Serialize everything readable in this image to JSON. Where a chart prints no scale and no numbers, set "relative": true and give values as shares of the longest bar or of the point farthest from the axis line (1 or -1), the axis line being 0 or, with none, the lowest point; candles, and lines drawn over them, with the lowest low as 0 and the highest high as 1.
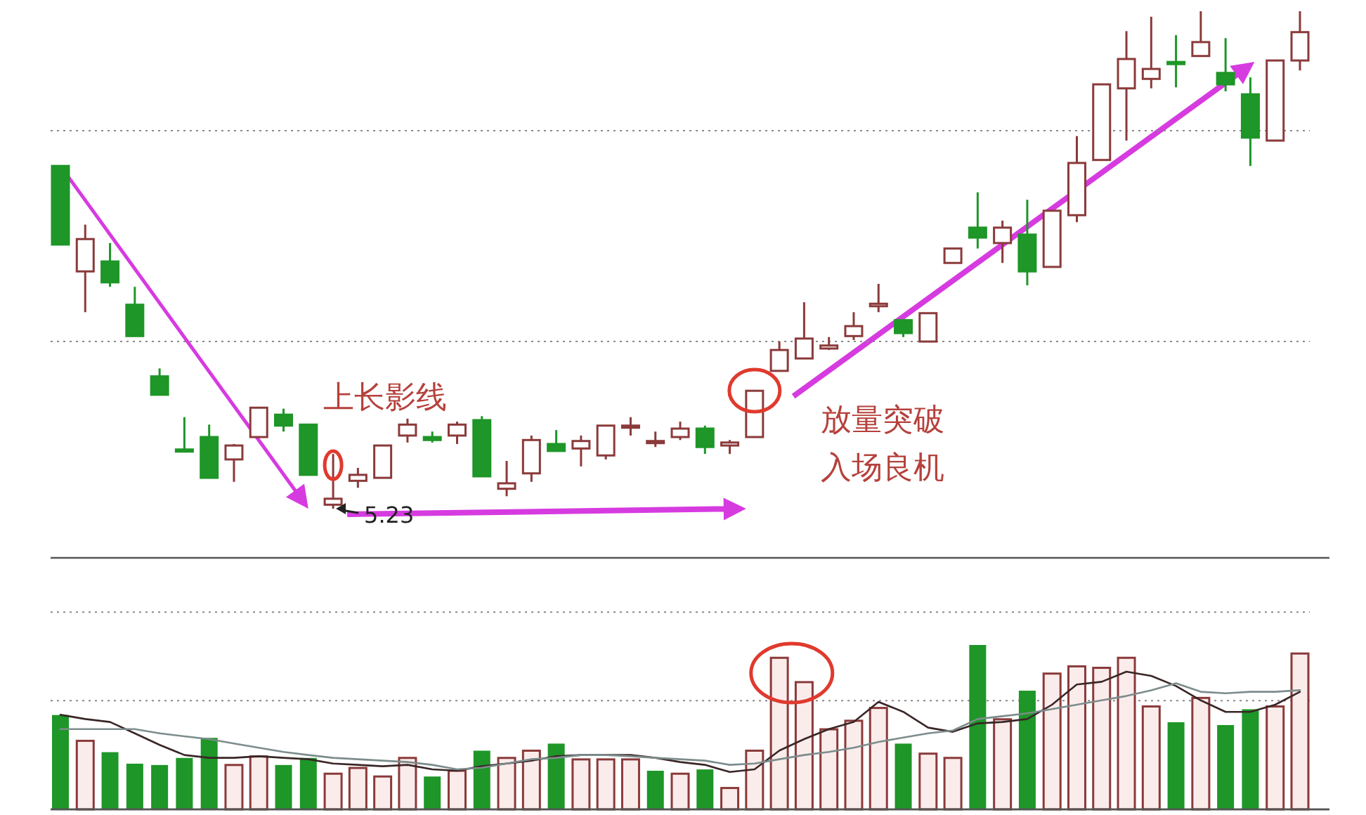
{
  "chart_data": [
    {
      "type": "candlestick",
      "relative": true,
      "ref_lines": [
        {
          "axis": "y",
          "value": 0.76,
          "line_style": "dotted",
          "color": "#8a8a8a"
        },
        {
          "axis": "y",
          "value": 0.336,
          "line_style": "dotted",
          "color": "#8a8a8a"
        }
      ],
      "categories": [
        null,
        null,
        null,
        null,
        null,
        null,
        null,
        null,
        null,
        null,
        null,
        null,
        null,
        null,
        null,
        null,
        null,
        null,
        null,
        null,
        null,
        null,
        null,
        null,
        null,
        null,
        null,
        null,
        null,
        null,
        null,
        null,
        null,
        null,
        null,
        null,
        null,
        null,
        null,
        null,
        null,
        null,
        null,
        null,
        null,
        null,
        null,
        null,
        null,
        null,
        null
      ],
      "ohlc": [
        [
          0.689,
          0.689,
          0.531,
          0.531
        ],
        [
          0.477,
          0.571,
          0.395,
          0.542
        ],
        [
          0.497,
          0.534,
          0.446,
          0.455
        ],
        [
          0.41,
          0.446,
          0.347,
          0.347
        ],
        [
          0.266,
          0.282,
          0.229,
          0.229
        ],
        [
          0.119,
          0.184,
          0.113,
          0.116
        ],
        [
          0.144,
          0.169,
          0.062,
          0.062
        ],
        [
          0.099,
          0.13,
          0.054,
          0.127
        ],
        [
          0.144,
          0.203,
          0.144,
          0.203
        ],
        [
          0.189,
          0.201,
          0.155,
          0.167
        ],
        [
          0.169,
          0.169,
          0.068,
          0.068
        ],
        [
          0.008,
          0.11,
          0,
          0.02
        ],
        [
          0.056,
          0.082,
          0.042,
          0.068
        ],
        [
          0.062,
          0.127,
          0.062,
          0.127
        ],
        [
          0.147,
          0.181,
          0.133,
          0.169
        ],
        [
          0.144,
          0.155,
          0.133,
          0.138
        ],
        [
          0.147,
          0.175,
          0.13,
          0.169
        ],
        [
          0.178,
          0.186,
          0.065,
          0.065
        ],
        [
          0.04,
          0.096,
          0.025,
          0.051
        ],
        [
          0.071,
          0.147,
          0.054,
          0.138
        ],
        [
          0.13,
          0.158,
          0.116,
          0.116
        ],
        [
          0.121,
          0.147,
          0.085,
          0.136
        ],
        [
          0.107,
          0.167,
          0.099,
          0.167
        ],
        [
          0.164,
          0.184,
          0.147,
          0.167
        ],
        [
          0.136,
          0.155,
          0.124,
          0.136
        ],
        [
          0.144,
          0.175,
          0.138,
          0.161
        ],
        [
          0.161,
          0.167,
          0.11,
          0.124
        ],
        [
          0.127,
          0.138,
          0.11,
          0.133
        ],
        [
          0.144,
          0.237,
          0.144,
          0.237
        ],
        [
          0.277,
          0.336,
          0.277,
          0.319
        ],
        [
          0.302,
          0.415,
          0.302,
          0.342
        ],
        [
          0.322,
          0.345,
          0.319,
          0.328
        ],
        [
          0.347,
          0.395,
          0.339,
          0.367
        ],
        [
          0.407,
          0.452,
          0.395,
          0.412
        ],
        [
          0.379,
          0.379,
          0.345,
          0.353
        ],
        [
          0.336,
          0.393,
          0.336,
          0.393
        ],
        [
          0.494,
          0.523,
          0.494,
          0.523
        ],
        [
          0.565,
          0.636,
          0.523,
          0.545
        ],
        [
          0.534,
          0.579,
          0.494,
          0.565
        ],
        [
          0.551,
          0.621,
          0.449,
          0.477
        ],
        [
          0.486,
          0.599,
          0.486,
          0.599
        ],
        [
          0.59,
          0.749,
          0.576,
          0.695
        ],
        [
          0.701,
          0.853,
          0.701,
          0.853
        ],
        [
          0.845,
          0.96,
          0.74,
          0.904
        ],
        [
          0.864,
          0.989,
          0.845,
          0.884
        ],
        [
          0.898,
          0.952,
          0.847,
          0.895
        ],
        [
          0.91,
          1,
          0.91,
          0.938
        ],
        [
          0.876,
          0.946,
          0.839,
          0.853
        ],
        [
          0.833,
          0.867,
          0.689,
          0.746
        ],
        [
          0.74,
          0.901,
          0.74,
          0.901
        ],
        [
          0.901,
          1,
          0.881,
          0.958
        ]
      ],
      "annotations": [
        "上长影线",
        "放量突破",
        "入场良机",
        "5.23"
      ]
    },
    {
      "type": "bar",
      "relative": true,
      "ref_lines": [
        {
          "axis": "y",
          "value": 1.2,
          "line_style": "dotted",
          "color": "#8a8a8a"
        },
        {
          "axis": "y",
          "value": 0.661,
          "line_style": "dotted",
          "color": "#8a8a8a"
        }
      ],
      "categories": [
        null,
        null,
        null,
        null,
        null,
        null,
        null,
        null,
        null,
        null,
        null,
        null,
        null,
        null,
        null,
        null,
        null,
        null,
        null,
        null,
        null,
        null,
        null,
        null,
        null,
        null,
        null,
        null,
        null,
        null,
        null,
        null,
        null,
        null,
        null,
        null,
        null,
        null,
        null,
        null,
        null,
        null,
        null,
        null,
        null,
        null,
        null,
        null,
        null,
        null,
        null
      ],
      "series": [
        {
          "type": "bar",
          "values": [
            0.574,
            0.417,
            0.348,
            0.278,
            0.27,
            0.313,
            0.435,
            0.27,
            0.322,
            0.27,
            0.313,
            0.217,
            0.252,
            0.2,
            0.313,
            0.2,
            0.235,
            0.357,
            0.313,
            0.357,
            0.4,
            0.304,
            0.304,
            0.304,
            0.235,
            0.217,
            0.243,
            0.13,
            0.357,
            0.922,
            0.774,
            0.487,
            0.539,
            0.617,
            0.4,
            0.339,
            0.313,
            1,
            0.548,
            0.722,
            0.826,
            0.87,
            0.861,
            0.922,
            0.626,
            0.53,
            0.678,
            0.513,
            0.609,
            0.626,
            0.948
          ],
          "colors": [
            "#1e9628",
            "#8b3a3a",
            "#1e9628",
            "#1e9628",
            "#1e9628",
            "#1e9628",
            "#1e9628",
            "#8b3a3a",
            "#8b3a3a",
            "#1e9628",
            "#1e9628",
            "#8b3a3a",
            "#8b3a3a",
            "#8b3a3a",
            "#8b3a3a",
            "#1e9628",
            "#8b3a3a",
            "#1e9628",
            "#8b3a3a",
            "#8b3a3a",
            "#1e9628",
            "#8b3a3a",
            "#8b3a3a",
            "#8b3a3a",
            "#1e9628",
            "#8b3a3a",
            "#1e9628",
            "#8b3a3a",
            "#8b3a3a",
            "#8b3a3a",
            "#8b3a3a",
            "#8b3a3a",
            "#8b3a3a",
            "#8b3a3a",
            "#1e9628",
            "#8b3a3a",
            "#8b3a3a",
            "#1e9628",
            "#8b3a3a",
            "#1e9628",
            "#8b3a3a",
            "#8b3a3a",
            "#8b3a3a",
            "#8b3a3a",
            "#8b3a3a",
            "#1e9628",
            "#8b3a3a",
            "#1e9628",
            "#1e9628",
            "#8b3a3a",
            "#8b3a3a"
          ]
        }
      ]
    },
    {
      "type": "line",
      "relative": true,
      "categories": [
        null,
        null,
        null,
        null,
        null,
        null,
        null,
        null,
        null,
        null,
        null,
        null,
        null,
        null,
        null,
        null,
        null,
        null,
        null,
        null,
        null,
        null,
        null,
        null,
        null,
        null,
        null,
        null,
        null,
        null,
        null,
        null,
        null,
        null,
        null,
        null,
        null,
        null,
        null,
        null,
        null,
        null,
        null,
        null,
        null,
        null,
        null,
        null,
        null,
        null,
        null
      ],
      "series": [
        {
          "color": "#3a2626",
          "values": [
            0.687,
            0.656,
            0.635,
            0.552,
            0.468,
            0.395,
            0.375,
            0.375,
            0.386,
            0.375,
            0.364,
            0.333,
            0.323,
            0.313,
            0.323,
            0.291,
            0.281,
            0.313,
            0.333,
            0.354,
            0.386,
            0.395,
            0.395,
            0.395,
            0.375,
            0.344,
            0.323,
            0.271,
            0.291,
            0.428,
            0.51,
            0.583,
            0.635,
            0.781,
            0.708,
            0.594,
            0.563,
            0.625,
            0.635,
            0.656,
            0.76,
            0.907,
            0.927,
            1,
            0.969,
            0.896,
            0.792,
            0.708,
            0.708,
            0.76,
            0.854
          ]
        },
        {
          "color": "#7d8c8c",
          "values": [
            0.583,
            0.583,
            0.583,
            0.583,
            0.552,
            0.531,
            0.51,
            0.479,
            0.448,
            0.417,
            0.395,
            0.375,
            0.364,
            0.354,
            0.344,
            0.323,
            0.291,
            0.302,
            0.333,
            0.364,
            0.375,
            0.395,
            0.395,
            0.386,
            0.375,
            0.364,
            0.354,
            0.323,
            0.333,
            0.364,
            0.395,
            0.417,
            0.448,
            0.49,
            0.521,
            0.552,
            0.572,
            0.656,
            0.677,
            0.698,
            0.729,
            0.76,
            0.792,
            0.823,
            0.865,
            0.916,
            0.854,
            0.843,
            0.854,
            0.854,
            0.865
          ]
        }
      ]
    }
  ]
}
